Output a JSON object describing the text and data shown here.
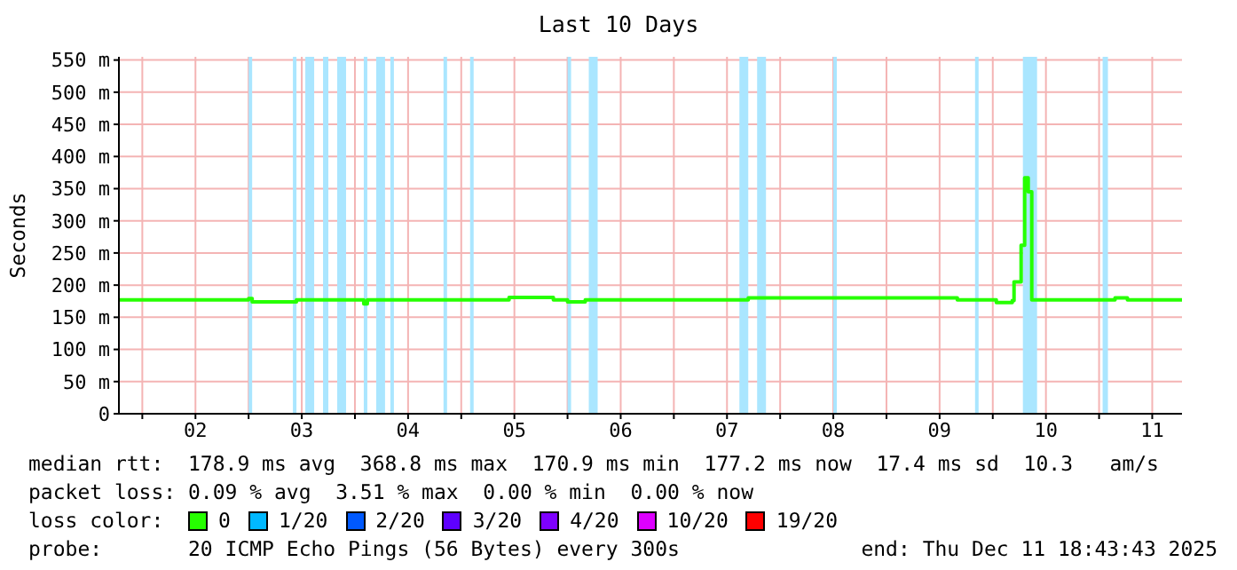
{
  "chart_data": {
    "type": "step",
    "title": "Last 10 Days",
    "ylabel": "Seconds",
    "legend": "bottom",
    "legend_title": "loss color:",
    "grid": true,
    "xlim": [
      "2025-12-01T18:43",
      "2025-12-11T18:43"
    ],
    "xticks": [
      {
        "value": "2025-12-02T00:00",
        "label": null
      },
      {
        "value": "2025-12-02T12:00",
        "label": "02"
      },
      {
        "value": "2025-12-03T00:00",
        "label": null
      },
      {
        "value": "2025-12-03T12:00",
        "label": "03"
      },
      {
        "value": "2025-12-04T00:00",
        "label": null
      },
      {
        "value": "2025-12-04T12:00",
        "label": "04"
      },
      {
        "value": "2025-12-05T00:00",
        "label": null
      },
      {
        "value": "2025-12-05T12:00",
        "label": "05"
      },
      {
        "value": "2025-12-06T00:00",
        "label": null
      },
      {
        "value": "2025-12-06T12:00",
        "label": "06"
      },
      {
        "value": "2025-12-07T00:00",
        "label": null
      },
      {
        "value": "2025-12-07T12:00",
        "label": "07"
      },
      {
        "value": "2025-12-08T00:00",
        "label": null
      },
      {
        "value": "2025-12-08T12:00",
        "label": "08"
      },
      {
        "value": "2025-12-09T00:00",
        "label": null
      },
      {
        "value": "2025-12-09T12:00",
        "label": "09"
      },
      {
        "value": "2025-12-10T00:00",
        "label": null
      },
      {
        "value": "2025-12-10T12:00",
        "label": "10"
      },
      {
        "value": "2025-12-11T00:00",
        "label": null
      },
      {
        "value": "2025-12-11T12:00",
        "label": "11"
      }
    ],
    "ylim": [
      0,
      555
    ],
    "yticks": [
      0,
      {
        "value": 50,
        "label": "50 m"
      },
      {
        "value": 100,
        "label": "100 m"
      },
      {
        "value": 150,
        "label": "150 m"
      },
      {
        "value": 200,
        "label": "200 m"
      },
      {
        "value": 250,
        "label": "250 m"
      },
      {
        "value": 300,
        "label": "300 m"
      },
      {
        "value": 350,
        "label": "350 m"
      },
      {
        "value": 400,
        "label": "400 m"
      },
      {
        "value": 450,
        "label": "450 m"
      },
      {
        "value": 500,
        "label": "500 m"
      },
      {
        "value": 550,
        "label": "550 m"
      }
    ],
    "x": [
      "2025-12-01T18:43",
      "2025-12-02T22:48",
      "2025-12-03T00:00",
      "2025-12-03T00:48",
      "2025-12-03T10:00",
      "2025-12-03T10:48",
      "2025-12-04T01:36",
      "2025-12-04T02:00",
      "2025-12-04T02:48",
      "2025-12-05T10:00",
      "2025-12-05T10:48",
      "2025-12-05T20:00",
      "2025-12-05T20:48",
      "2025-12-05T23:12",
      "2025-12-06T00:00",
      "2025-12-06T03:12",
      "2025-12-06T04:00",
      "2025-12-07T16:00",
      "2025-12-07T16:48",
      "2025-12-09T12:00",
      "2025-12-09T16:00",
      "2025-12-09T23:12",
      "2025-12-10T00:48",
      "2025-12-10T02:48",
      "2025-12-10T04:24",
      "2025-12-10T04:48",
      "2025-12-10T06:00",
      "2025-12-10T06:24",
      "2025-12-10T07:12",
      "2025-12-10T08:00",
      "2025-12-10T08:48",
      "2025-12-11T03:12",
      "2025-12-11T03:36",
      "2025-12-11T05:36",
      "2025-12-11T06:24",
      "2025-12-11T18:43"
    ],
    "series": [
      {
        "name": "0",
        "color": "#26ff00",
        "values": [
          177,
          177,
          179,
          174,
          174,
          177,
          177,
          171,
          177,
          177,
          181,
          181,
          177,
          177,
          174,
          174,
          177,
          177,
          180,
          180,
          177,
          177,
          173,
          173,
          176,
          205,
          205,
          262,
          367,
          345,
          177,
          177,
          180,
          180,
          177,
          177
        ]
      },
      {
        "name": "1/20",
        "color": "#00b8ff",
        "values": [
          null,
          null,
          null,
          null,
          null,
          null,
          null,
          null,
          null,
          null,
          null,
          null,
          null,
          null,
          null,
          null,
          null,
          null,
          null,
          null,
          null,
          null,
          null,
          null,
          null,
          null,
          null,
          null,
          null,
          null,
          null,
          null,
          null,
          null,
          null,
          null
        ]
      },
      {
        "name": "2/20",
        "color": "#0059ff",
        "values": [
          null,
          null,
          null,
          null,
          null,
          null,
          null,
          null,
          null,
          null,
          null,
          null,
          null,
          null,
          null,
          null,
          null,
          null,
          null,
          null,
          null,
          null,
          null,
          null,
          null,
          null,
          null,
          null,
          null,
          null,
          null,
          null,
          null,
          null,
          null,
          null
        ]
      },
      {
        "name": "3/20",
        "color": "#5e00ff",
        "values": [
          null,
          null,
          null,
          null,
          null,
          null,
          null,
          null,
          null,
          null,
          null,
          null,
          null,
          null,
          null,
          null,
          null,
          null,
          null,
          null,
          null,
          null,
          null,
          null,
          null,
          null,
          null,
          null,
          null,
          null,
          null,
          null,
          null,
          null,
          null,
          null
        ]
      },
      {
        "name": "4/20",
        "color": "#7e00ff",
        "values": [
          null,
          null,
          null,
          null,
          null,
          null,
          null,
          null,
          null,
          null,
          null,
          null,
          null,
          null,
          null,
          null,
          null,
          null,
          null,
          null,
          null,
          null,
          null,
          null,
          null,
          null,
          null,
          null,
          null,
          null,
          null,
          null,
          null,
          null,
          null,
          null
        ]
      },
      {
        "name": "10/20",
        "color": "#dd00ff",
        "values": [
          null,
          null,
          null,
          null,
          null,
          null,
          null,
          null,
          null,
          null,
          null,
          null,
          null,
          null,
          null,
          null,
          null,
          null,
          null,
          null,
          null,
          null,
          null,
          null,
          null,
          null,
          null,
          null,
          null,
          null,
          null,
          null,
          null,
          null,
          null,
          null
        ]
      },
      {
        "name": "19/20",
        "color": "#ff0000",
        "values": [
          null,
          null,
          null,
          null,
          null,
          null,
          null,
          null,
          null,
          null,
          null,
          null,
          null,
          null,
          null,
          null,
          null,
          null,
          null,
          null,
          null,
          null,
          null,
          null,
          null,
          null,
          null,
          null,
          null,
          null,
          null,
          null,
          null,
          null,
          null,
          null
        ]
      }
    ],
    "bands": [
      {
        "axis": "x",
        "from": "2025-12-03T00:00",
        "to": "2025-12-03T00:48",
        "color": "#aae6ff"
      },
      {
        "axis": "x",
        "from": "2025-12-03T10:00",
        "to": "2025-12-03T10:48",
        "color": "#aae6ff"
      },
      {
        "axis": "x",
        "from": "2025-12-03T12:48",
        "to": "2025-12-03T14:48",
        "color": "#aae6ff"
      },
      {
        "axis": "x",
        "from": "2025-12-03T16:48",
        "to": "2025-12-03T18:00",
        "color": "#aae6ff"
      },
      {
        "axis": "x",
        "from": "2025-12-03T20:00",
        "to": "2025-12-03T22:00",
        "color": "#aae6ff"
      },
      {
        "axis": "x",
        "from": "2025-12-04T02:00",
        "to": "2025-12-04T02:48",
        "color": "#aae6ff"
      },
      {
        "axis": "x",
        "from": "2025-12-04T04:48",
        "to": "2025-12-04T06:48",
        "color": "#aae6ff"
      },
      {
        "axis": "x",
        "from": "2025-12-04T08:00",
        "to": "2025-12-04T08:48",
        "color": "#aae6ff"
      },
      {
        "axis": "x",
        "from": "2025-12-04T20:00",
        "to": "2025-12-04T20:48",
        "color": "#aae6ff"
      },
      {
        "axis": "x",
        "from": "2025-12-05T02:00",
        "to": "2025-12-05T02:48",
        "color": "#aae6ff"
      },
      {
        "axis": "x",
        "from": "2025-12-06T00:00",
        "to": "2025-12-06T00:48",
        "color": "#aae6ff"
      },
      {
        "axis": "x",
        "from": "2025-12-06T04:48",
        "to": "2025-12-06T06:48",
        "color": "#aae6ff"
      },
      {
        "axis": "x",
        "from": "2025-12-07T14:48",
        "to": "2025-12-07T16:48",
        "color": "#aae6ff"
      },
      {
        "axis": "x",
        "from": "2025-12-07T18:48",
        "to": "2025-12-07T20:48",
        "color": "#aae6ff"
      },
      {
        "axis": "x",
        "from": "2025-12-08T12:00",
        "to": "2025-12-08T12:48",
        "color": "#aae6ff"
      },
      {
        "axis": "x",
        "from": "2025-12-09T20:00",
        "to": "2025-12-09T20:48",
        "color": "#aae6ff"
      },
      {
        "axis": "x",
        "from": "2025-12-10T06:48",
        "to": "2025-12-10T10:00",
        "color": "#aae6ff"
      },
      {
        "axis": "x",
        "from": "2025-12-11T00:48",
        "to": "2025-12-11T02:00",
        "color": "#aae6ff"
      }
    ],
    "annotations": [
      "median rtt:  178.9 ms avg  368.8 ms max  170.9 ms min  177.2 ms now  17.4 ms sd  10.3   am/s",
      "packet loss: 0.09 % avg  3.51 % max  0.00 % min  0.00 % now",
      "probe:       20 ICMP Echo Pings (56 Bytes) every 300s",
      "end: Thu Dec 11 18:43:43 2025"
    ]
  }
}
